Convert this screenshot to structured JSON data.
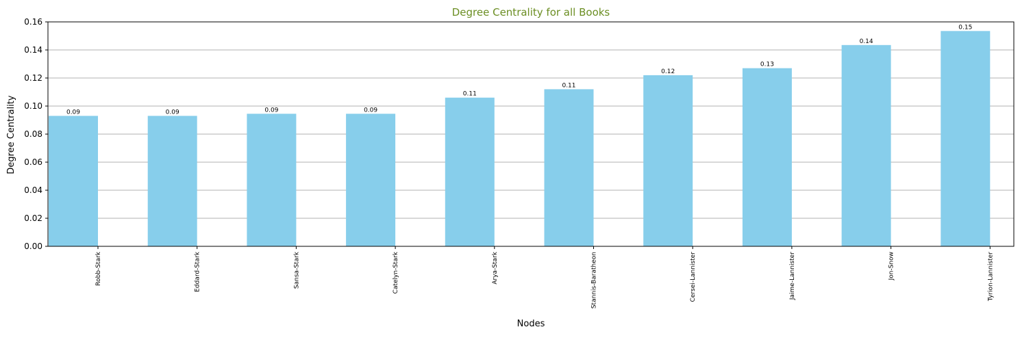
{
  "chart_data": {
    "type": "bar",
    "title": "Degree Centrality for all Books",
    "title_color": "#6b8e23",
    "bar_color": "#87ceeb",
    "grid_color": "#b0b0b0",
    "xlabel": "Nodes",
    "ylabel": "Degree Centrality",
    "ylim": [
      0,
      0.16
    ],
    "yticks": [
      "0.00",
      "0.02",
      "0.04",
      "0.06",
      "0.08",
      "0.10",
      "0.12",
      "0.14",
      "0.16"
    ],
    "grid": "horizontal",
    "categories": [
      "Robb-Stark",
      "Eddard-Stark",
      "Sansa-Stark",
      "Catelyn-Stark",
      "Arya-Stark",
      "Stannis-Baratheon",
      "Cersei-Lannister",
      "Jaime-Lannister",
      "Jon-Snow",
      "Tyrion-Lannister"
    ],
    "values": [
      0.093,
      0.093,
      0.0945,
      0.0945,
      0.106,
      0.112,
      0.122,
      0.127,
      0.1435,
      0.1535
    ],
    "data_labels": [
      "0.09",
      "0.09",
      "0.09",
      "0.09",
      "0.11",
      "0.11",
      "0.12",
      "0.13",
      "0.14",
      "0.15"
    ]
  }
}
